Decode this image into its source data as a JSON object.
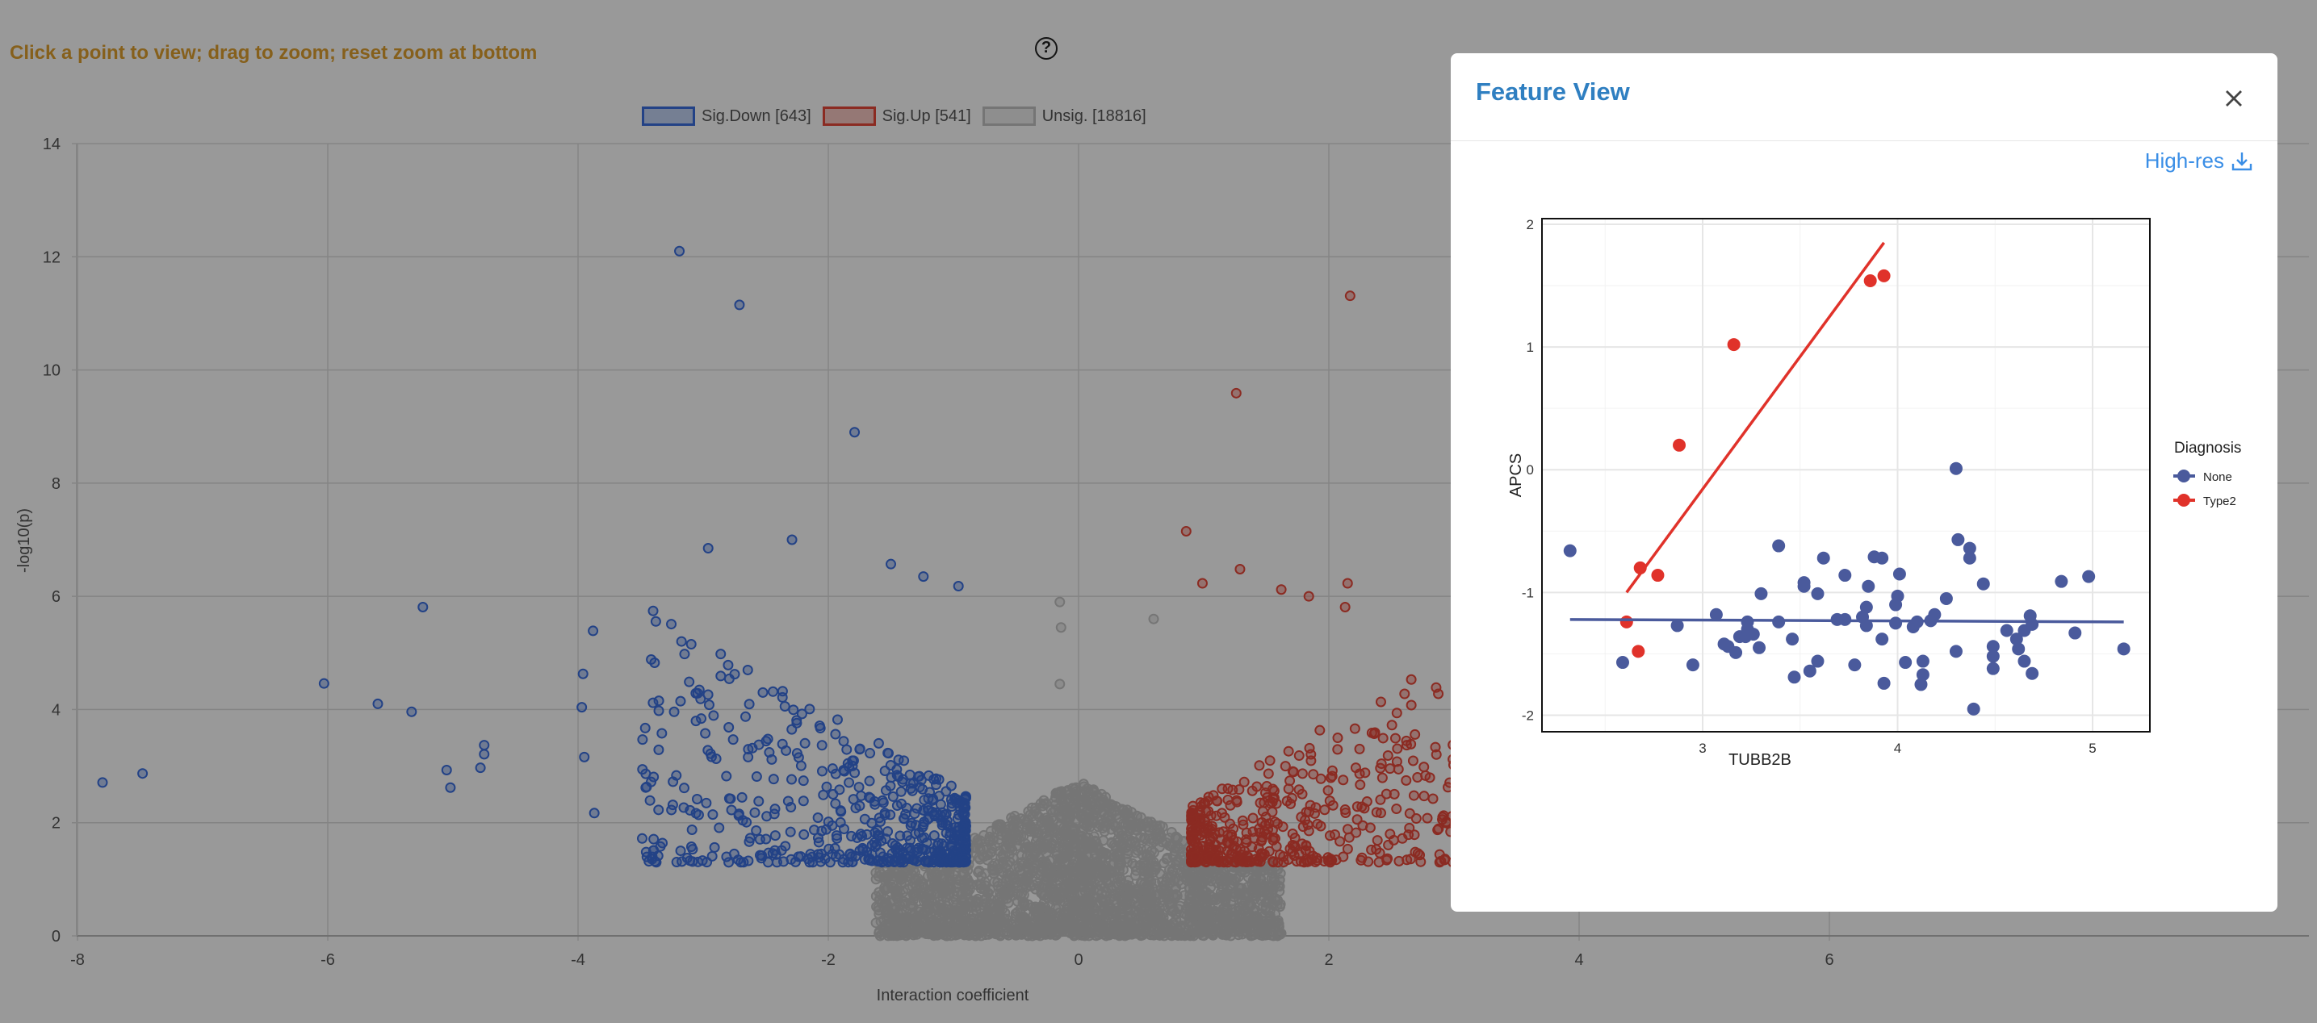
{
  "instruction": "Click a point to view; drag to zoom; reset zoom at bottom",
  "help_icon": "question-circle-icon",
  "colors": {
    "sig_down": "#3b6fe0",
    "sig_up": "#e8483a",
    "unsig": "#c4c4c4",
    "instruction": "#e0a030",
    "modal_title": "#2f7fc1",
    "link": "#3a8ee6",
    "none": "#4a5a9c",
    "type2": "#e0322a"
  },
  "chart_data": [
    {
      "type": "scatter",
      "title": "",
      "xlabel": "Interaction coefficient",
      "ylabel": "-log10(p)",
      "xlim": [
        -8,
        8
      ],
      "ylim": [
        0,
        14
      ],
      "x_ticks": [
        "-8",
        "-6",
        "-4",
        "-2",
        "0",
        "2",
        "4",
        "6"
      ],
      "y_ticks": [
        "0",
        "2",
        "4",
        "6",
        "8",
        "10",
        "12",
        "14"
      ],
      "grid": true,
      "legend_position": "top",
      "legend": [
        {
          "label": "Sig.Down [643]",
          "count": 643
        },
        {
          "label": "Sig.Up [541]",
          "count": 541
        },
        {
          "label": "Unsig. [18816]",
          "count": 18816
        }
      ],
      "series": [
        {
          "name": "Sig.Down",
          "points": [
            [
              -3.19,
              12.1
            ],
            [
              -2.71,
              11.15
            ],
            [
              -1.79,
              8.9
            ],
            [
              -2.29,
              7.0
            ],
            [
              -2.96,
              6.85
            ],
            [
              -1.5,
              6.57
            ],
            [
              -1.24,
              6.35
            ],
            [
              -0.96,
              6.18
            ],
            [
              -5.24,
              5.81
            ],
            [
              -3.88,
              5.39
            ],
            [
              -6.03,
              4.46
            ],
            [
              -5.6,
              4.1
            ],
            [
              -5.33,
              3.96
            ],
            [
              -7.8,
              2.71
            ],
            [
              -7.48,
              2.87
            ],
            [
              -5.05,
              2.93
            ],
            [
              -5.02,
              2.62
            ],
            [
              -4.75,
              3.37
            ],
            [
              -4.75,
              3.21
            ],
            [
              -4.78,
              2.97
            ],
            [
              -3.96,
              4.63
            ],
            [
              -3.97,
              4.04
            ],
            [
              -3.95,
              3.16
            ],
            [
              -3.87,
              2.17
            ]
          ]
        },
        {
          "name": "Sig.Up",
          "points": [
            [
              2.17,
              11.31
            ],
            [
              1.26,
              9.59
            ],
            [
              0.86,
              7.15
            ],
            [
              1.29,
              6.48
            ],
            [
              0.99,
              6.23
            ],
            [
              2.15,
              6.23
            ],
            [
              1.62,
              6.12
            ],
            [
              1.84,
              6.0
            ],
            [
              2.13,
              5.81
            ]
          ]
        },
        {
          "name": "Unsig.",
          "points": [
            [
              -0.15,
              5.9
            ],
            [
              -0.14,
              5.45
            ],
            [
              0.6,
              5.6
            ],
            [
              -0.15,
              4.45
            ]
          ]
        }
      ]
    },
    {
      "type": "scatter",
      "xlabel": "TUBB2B",
      "ylabel": "APCS",
      "xlim": [
        2.176,
        5.294
      ],
      "ylim": [
        -2.135,
        2.046
      ],
      "x_ticks": [
        "3",
        "4",
        "5"
      ],
      "y_ticks": [
        "-2",
        "-1",
        "0",
        "1",
        "2"
      ],
      "grid": true,
      "legend_title": "Diagnosis",
      "legend_position": "right",
      "series": [
        {
          "name": "None",
          "fit": [
            [
              2.32,
              -1.22
            ],
            [
              5.16,
              -1.24
            ]
          ],
          "points": [
            [
              2.32,
              -0.66
            ],
            [
              2.59,
              -1.57
            ],
            [
              2.87,
              -1.27
            ],
            [
              2.95,
              -1.59
            ],
            [
              3.07,
              -1.18
            ],
            [
              3.11,
              -1.42
            ],
            [
              3.13,
              -1.44
            ],
            [
              3.17,
              -1.49
            ],
            [
              3.19,
              -1.36
            ],
            [
              3.22,
              -1.36
            ],
            [
              3.23,
              -1.24
            ],
            [
              3.23,
              -1.3
            ],
            [
              3.26,
              -1.34
            ],
            [
              3.29,
              -1.45
            ],
            [
              3.3,
              -1.01
            ],
            [
              3.39,
              -1.24
            ],
            [
              3.39,
              -0.62
            ],
            [
              3.46,
              -1.38
            ],
            [
              3.47,
              -1.69
            ],
            [
              3.52,
              -0.92
            ],
            [
              3.52,
              -0.95
            ],
            [
              3.55,
              -1.64
            ],
            [
              3.59,
              -1.01
            ],
            [
              3.59,
              -1.56
            ],
            [
              3.62,
              -0.72
            ],
            [
              3.69,
              -1.22
            ],
            [
              3.73,
              -0.86
            ],
            [
              3.73,
              -1.22
            ],
            [
              3.78,
              -1.59
            ],
            [
              3.82,
              -1.2
            ],
            [
              3.84,
              -1.12
            ],
            [
              3.84,
              -1.27
            ],
            [
              3.85,
              -0.95
            ],
            [
              3.88,
              -0.71
            ],
            [
              3.92,
              -0.72
            ],
            [
              3.92,
              -1.38
            ],
            [
              3.93,
              -1.74
            ],
            [
              3.99,
              -1.1
            ],
            [
              3.99,
              -1.25
            ],
            [
              4.0,
              -1.03
            ],
            [
              4.01,
              -0.85
            ],
            [
              4.04,
              -1.57
            ],
            [
              4.08,
              -1.28
            ],
            [
              4.1,
              -1.24
            ],
            [
              4.12,
              -1.75
            ],
            [
              4.13,
              -1.67
            ],
            [
              4.13,
              -1.56
            ],
            [
              4.17,
              -1.23
            ],
            [
              4.19,
              -1.18
            ],
            [
              4.25,
              -1.05
            ],
            [
              4.3,
              0.01
            ],
            [
              4.3,
              -1.48
            ],
            [
              4.31,
              -0.57
            ],
            [
              4.37,
              -0.64
            ],
            [
              4.37,
              -0.72
            ],
            [
              4.39,
              -1.95
            ],
            [
              4.44,
              -0.93
            ],
            [
              4.49,
              -1.44
            ],
            [
              4.49,
              -1.52
            ],
            [
              4.49,
              -1.62
            ],
            [
              4.56,
              -1.31
            ],
            [
              4.61,
              -1.38
            ],
            [
              4.62,
              -1.46
            ],
            [
              4.65,
              -1.31
            ],
            [
              4.65,
              -1.56
            ],
            [
              4.68,
              -1.19
            ],
            [
              4.69,
              -1.26
            ],
            [
              4.69,
              -1.66
            ],
            [
              4.84,
              -0.91
            ],
            [
              4.91,
              -1.33
            ],
            [
              4.98,
              -0.87
            ],
            [
              5.16,
              -1.46
            ]
          ]
        },
        {
          "name": "Type2",
          "fit": [
            [
              2.61,
              -1.0
            ],
            [
              3.93,
              1.85
            ]
          ],
          "points": [
            [
              2.61,
              -1.24
            ],
            [
              2.67,
              -1.48
            ],
            [
              2.68,
              -0.8
            ],
            [
              2.77,
              -0.86
            ],
            [
              2.88,
              0.2
            ],
            [
              3.16,
              1.02
            ],
            [
              3.86,
              1.54
            ],
            [
              3.93,
              1.58
            ]
          ]
        }
      ]
    }
  ],
  "modal": {
    "title": "Feature View",
    "close_icon": "close-icon",
    "high_res_label": "High-res",
    "download_icon": "download-icon"
  }
}
